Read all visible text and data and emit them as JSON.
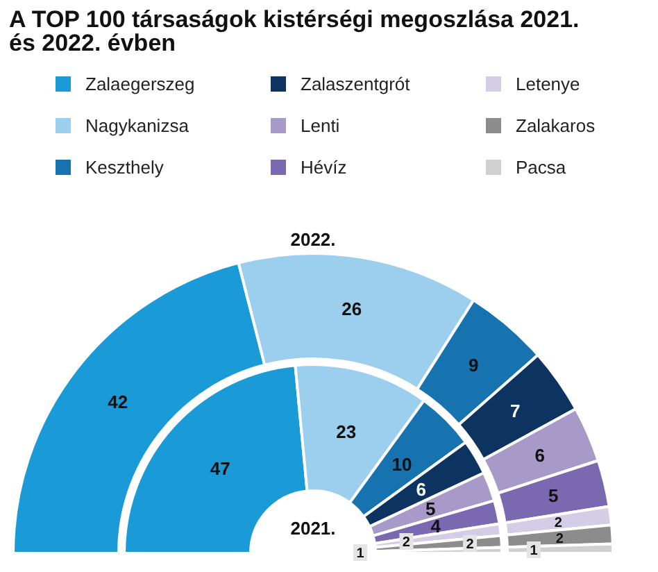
{
  "chart_data": {
    "type": "donut",
    "title": "A TOP 100 társaságok kistérségi megoszlása 2021. és 2022. évben",
    "categories": [
      "Zalaegerszeg",
      "Nagykanizsa",
      "Keszthely",
      "Zalaszentgrót",
      "Lenti",
      "Hévíz",
      "Letenye",
      "Zalakaros",
      "Pacsa"
    ],
    "colors": [
      "#1a9ad6",
      "#9ccfee",
      "#1673b0",
      "#0d3461",
      "#a89ac8",
      "#7a68b0",
      "#d4cde6",
      "#8c8c8c",
      "#d0d0d0"
    ],
    "series": [
      {
        "name": "2022.",
        "values": [
          42,
          26,
          9,
          7,
          6,
          5,
          2,
          2,
          1
        ]
      },
      {
        "name": "2021.",
        "values": [
          47,
          23,
          10,
          6,
          5,
          4,
          2,
          2,
          1
        ]
      }
    ],
    "data_labels": true,
    "legend": "top"
  }
}
